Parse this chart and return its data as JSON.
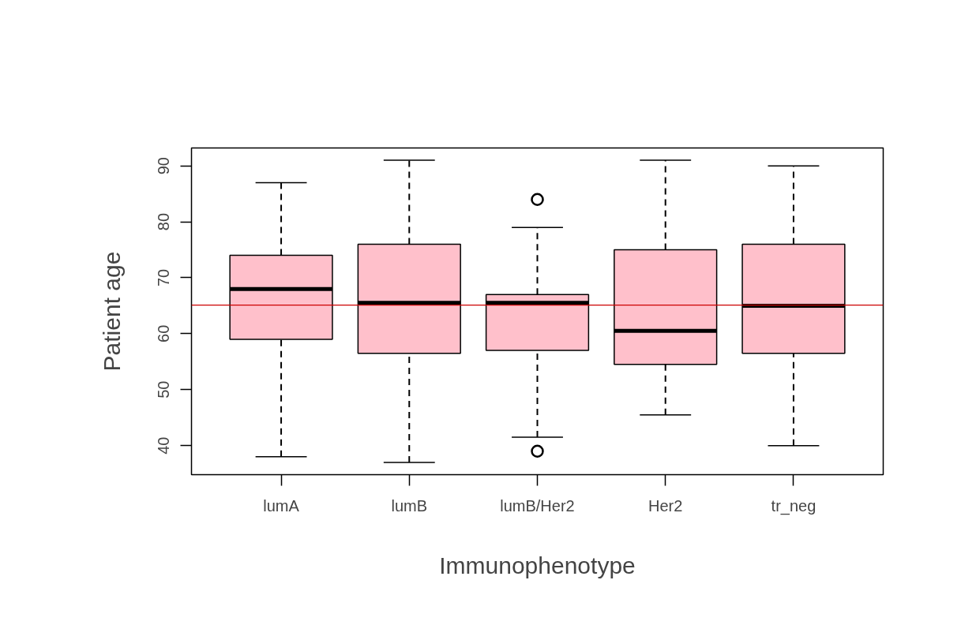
{
  "chart_data": {
    "type": "box",
    "xlabel": "Immunophenotype",
    "ylabel": "Patient age",
    "categories": [
      "lumA",
      "lumB",
      "lumB/Her2",
      "Her2",
      "tr_neg"
    ],
    "color": "#ffc0cb",
    "boxes": [
      {
        "low": 38,
        "q1": 59,
        "median": 68,
        "q3": 74,
        "high": 87
      },
      {
        "low": 37,
        "q1": 56.5,
        "median": 65.5,
        "q3": 76,
        "high": 91
      },
      {
        "low": 41.5,
        "q1": 57,
        "median": 65.5,
        "q3": 67,
        "high": 79,
        "outliers": [
          84,
          39
        ]
      },
      {
        "low": 45.5,
        "q1": 54.5,
        "median": 60.5,
        "q3": 75,
        "high": 91
      },
      {
        "low": 40,
        "q1": 56.5,
        "median": 65,
        "q3": 76,
        "high": 90
      }
    ],
    "ylim": [
      34.8,
      93.2
    ],
    "yticks": [
      40,
      50,
      60,
      70,
      80,
      90
    ],
    "ref_lines": [
      {
        "axis": "y",
        "value": 65.1,
        "color": "#cc0000"
      }
    ],
    "grid": false
  }
}
